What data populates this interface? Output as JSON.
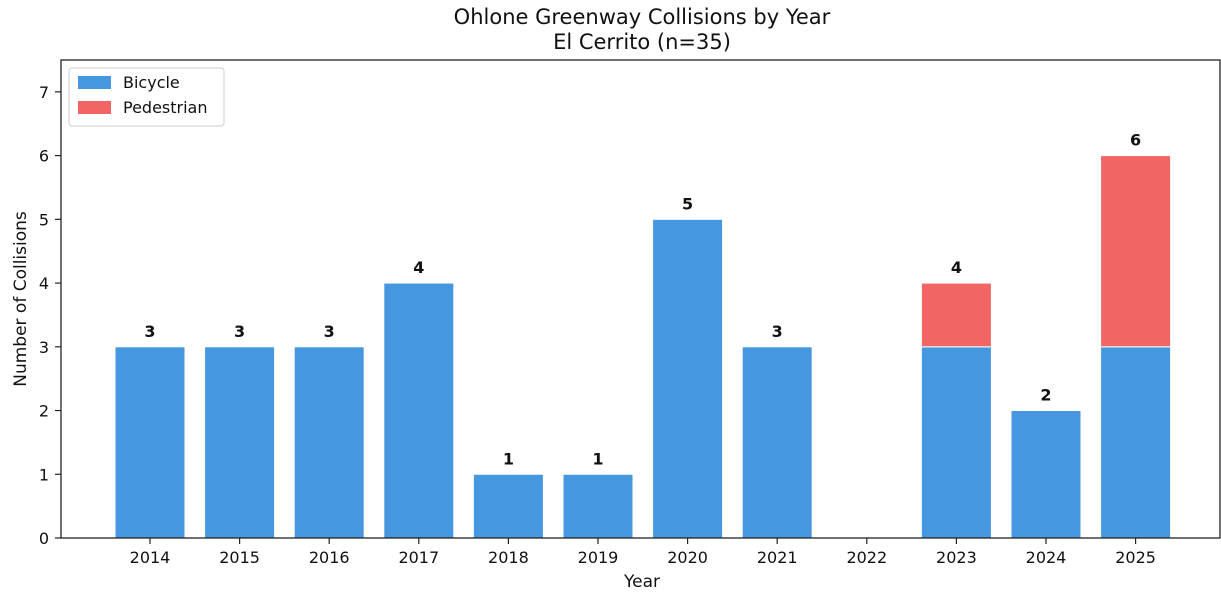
{
  "chart_data": {
    "type": "bar",
    "stacked": true,
    "title": "Ohlone Greenway Collisions by Year",
    "subtitle": "El Cerrito (n=35)",
    "xlabel": "Year",
    "ylabel": "Number of Collisions",
    "categories": [
      "2014",
      "2015",
      "2016",
      "2017",
      "2018",
      "2019",
      "2020",
      "2021",
      "2022",
      "2023",
      "2024",
      "2025"
    ],
    "series": [
      {
        "name": "Bicycle",
        "color": "#4598DF",
        "values": [
          3,
          3,
          3,
          4,
          1,
          1,
          5,
          3,
          0,
          3,
          2,
          3
        ]
      },
      {
        "name": "Pedestrian",
        "color": "#F26565",
        "values": [
          0,
          0,
          0,
          0,
          0,
          0,
          0,
          0,
          0,
          1,
          0,
          3
        ]
      }
    ],
    "totals": [
      "3",
      "3",
      "3",
      "4",
      "1",
      "1",
      "5",
      "3",
      "",
      "4",
      "2",
      "6"
    ],
    "ylim": [
      0,
      7.5
    ],
    "yticks": [
      "0",
      "1",
      "2",
      "3",
      "4",
      "5",
      "6",
      "7"
    ],
    "grid": false,
    "legend_position": "top-left"
  }
}
